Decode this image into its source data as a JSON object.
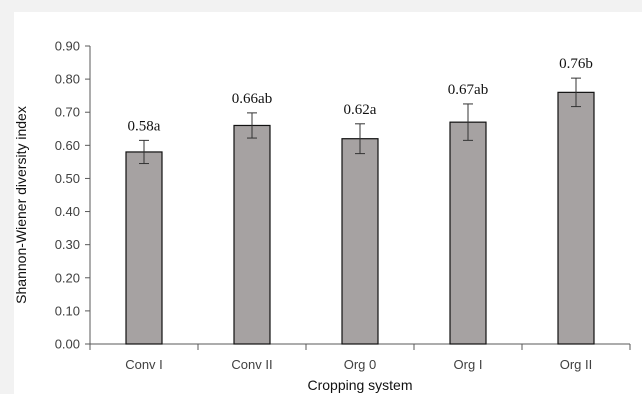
{
  "chart_data": {
    "type": "bar",
    "title": "",
    "xlabel": "Cropping system",
    "ylabel": "Shannon-Wiener diversity index",
    "categories": [
      "Conv I",
      "Conv II",
      "Org 0",
      "Org I",
      "Org II"
    ],
    "values": [
      0.58,
      0.66,
      0.62,
      0.67,
      0.76
    ],
    "errors": [
      0.035,
      0.038,
      0.045,
      0.055,
      0.043
    ],
    "data_labels": [
      "0.58a",
      "0.66ab",
      "0.62a",
      "0.67ab",
      "0.76b"
    ],
    "ylim": [
      0,
      0.9
    ],
    "yticks": [
      0,
      0.1,
      0.2,
      0.3,
      0.4,
      0.5,
      0.6,
      0.7,
      0.8,
      0.9
    ],
    "ytick_labels": [
      "0.00",
      "0.10",
      "0.20",
      "0.30",
      "0.40",
      "0.50",
      "0.60",
      "0.70",
      "0.80",
      "0.90"
    ],
    "grid": false,
    "legend": "none",
    "colors": {
      "bar_fill": "#a6a2a2",
      "bar_stroke": "#111111",
      "axis": "#595959",
      "background": "#f2f2f2",
      "plot_background": "#ffffff"
    }
  }
}
